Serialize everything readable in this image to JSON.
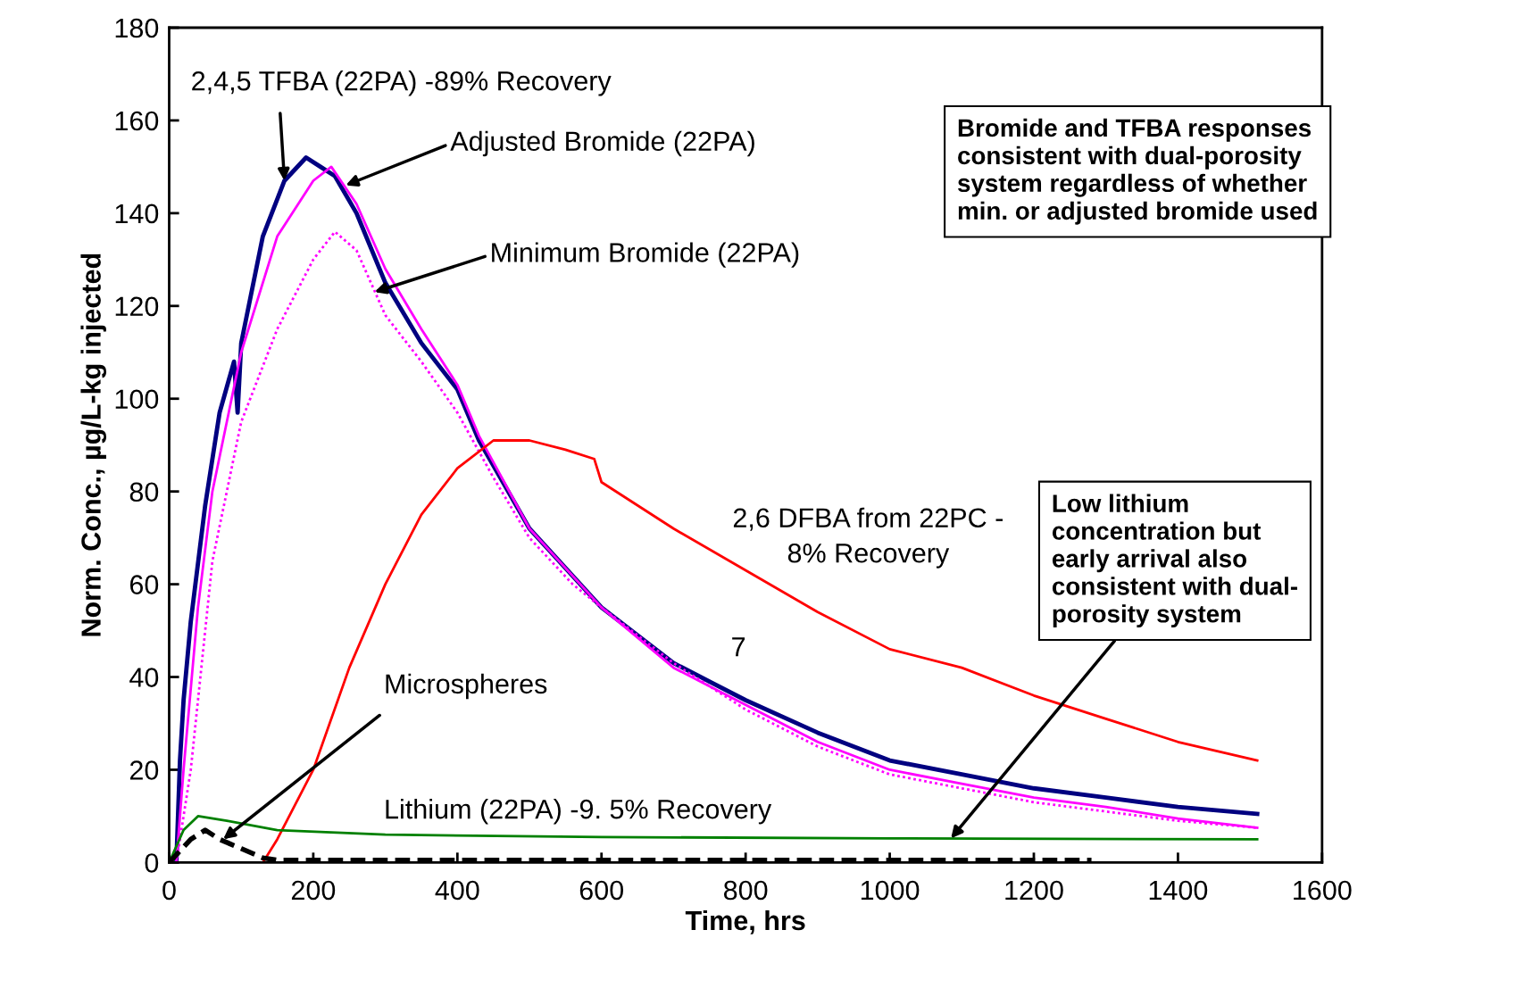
{
  "chart_data": {
    "type": "line",
    "xlabel": "Time, hrs",
    "ylabel": "Norm. Conc., µg/L-kg injected",
    "xlim": [
      0,
      1600
    ],
    "xticks": [
      0,
      200,
      400,
      600,
      800,
      1000,
      1200,
      1400,
      1600
    ],
    "ylim": [
      0,
      180
    ],
    "yticks": [
      0,
      20,
      40,
      60,
      80,
      100,
      120,
      140,
      160,
      180
    ],
    "grid": false,
    "legend": false,
    "series": [
      {
        "color": "#000080",
        "line_style": "solid",
        "x": [
          10,
          15,
          20,
          30,
          50,
          70,
          90,
          95,
          100,
          130,
          160,
          190,
          210,
          230,
          260,
          300,
          350,
          400,
          430,
          500,
          600,
          700,
          800,
          900,
          1000,
          1100,
          1200,
          1300,
          1400,
          1510
        ],
        "values": [
          0,
          22,
          35,
          52,
          77,
          97,
          108,
          97,
          112,
          135,
          147,
          152,
          150,
          148,
          140,
          125,
          112,
          102,
          91,
          72,
          55,
          43,
          35,
          28,
          22,
          19,
          16,
          14,
          12,
          10.5
        ]
      },
      {
        "color": "#ff00ff",
        "line_style": "solid",
        "x": [
          10,
          20,
          40,
          60,
          100,
          150,
          200,
          225,
          260,
          300,
          350,
          400,
          430,
          500,
          600,
          700,
          800,
          900,
          1000,
          1100,
          1200,
          1300,
          1400,
          1510
        ],
        "values": [
          0,
          20,
          55,
          80,
          110,
          135,
          147,
          150,
          142,
          128,
          115,
          103,
          92,
          72,
          55,
          42,
          34,
          26,
          20,
          17,
          14,
          12,
          9.5,
          7.5
        ]
      },
      {
        "color": "#ff00ff",
        "line_style": "dotted",
        "x": [
          10,
          30,
          60,
          100,
          150,
          200,
          230,
          260,
          300,
          350,
          400,
          450,
          500,
          560,
          600,
          700,
          800,
          900,
          1000,
          1100,
          1200,
          1300,
          1400,
          1510
        ],
        "values": [
          0,
          20,
          65,
          95,
          115,
          130,
          136,
          132,
          118,
          108,
          97,
          83,
          70,
          60,
          55,
          43,
          33,
          25,
          19,
          16,
          13,
          11,
          9,
          7.5
        ]
      },
      {
        "color": "#ff0000",
        "line_style": "solid",
        "x": [
          130,
          150,
          200,
          250,
          300,
          350,
          400,
          450,
          500,
          550,
          590,
          600,
          700,
          800,
          900,
          1000,
          1100,
          1200,
          1300,
          1400,
          1510
        ],
        "values": [
          0,
          5,
          20,
          42,
          60,
          75,
          85,
          91,
          91,
          89,
          87,
          82,
          72,
          63,
          54,
          46,
          42,
          36,
          31,
          26,
          22
        ]
      },
      {
        "color": "#008000",
        "line_style": "solid",
        "x": [
          0,
          20,
          40,
          80,
          150,
          300,
          600,
          1000,
          1510
        ],
        "values": [
          0,
          7,
          10,
          9,
          7,
          6,
          5.5,
          5.2,
          5
        ]
      },
      {
        "color": "#000000",
        "line_style": "dashed",
        "x": [
          0,
          30,
          50,
          70,
          100,
          130,
          150,
          1280
        ],
        "values": [
          0,
          5,
          7,
          5,
          3,
          1,
          0.5,
          0.5
        ]
      }
    ],
    "annotations": [
      {
        "text": "2,4,5 TFBA (22PA) -89% Recovery",
        "x": 160,
        "y": 147
      },
      {
        "text": "Adjusted Bromide (22PA)",
        "x": 245,
        "y": 146
      },
      {
        "text": "Minimum Bromide (22PA)",
        "x": 285,
        "y": 123
      },
      "2,6 DFBA from 22PC -\n8% Recovery",
      "7",
      {
        "text": "Microspheres",
        "x": 75,
        "y": 5
      },
      "Lithium (22PA) -9. 5% Recovery",
      "Bromide and TFBA responses\nconsistent with dual-porosity\nsystem regardless of whether\nmin. or adjusted bromide used",
      {
        "text": "Low lithium\nconcentration but\nearly arrival also\nconsistent with dual-\nporosity system",
        "x": 1085,
        "y": 5.2
      }
    ]
  }
}
